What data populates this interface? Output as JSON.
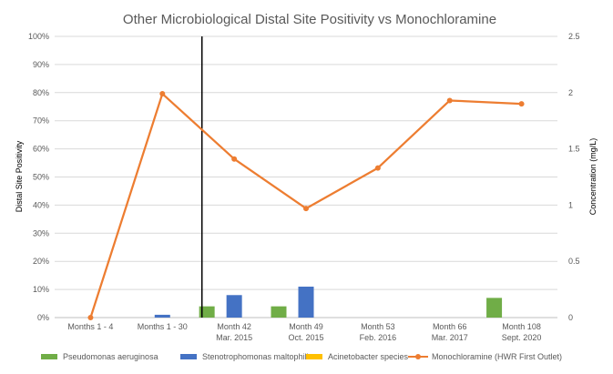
{
  "chart_data": {
    "type": "bar+line",
    "title": "Other Microbiological Distal Site Positivity vs Monochloramine",
    "ylabel": "Distal Site Positivity",
    "y2label": "Concentration (mg/L)",
    "ylim": [
      0,
      100
    ],
    "y2lim": [
      0,
      2.5
    ],
    "yticks": [
      "0%",
      "10%",
      "20%",
      "30%",
      "40%",
      "50%",
      "60%",
      "70%",
      "80%",
      "90%",
      "100%"
    ],
    "y2ticks": [
      "0",
      "0.5",
      "1",
      "1.5",
      "2",
      "2.5"
    ],
    "grid": true,
    "legend_position": "bottom",
    "categories": [
      {
        "line1": "Months 1 - 4",
        "line2": ""
      },
      {
        "line1": "Months 1 - 30",
        "line2": ""
      },
      {
        "line1": "Month 42",
        "line2": "Mar. 2015"
      },
      {
        "line1": "Month 49",
        "line2": "Oct. 2015"
      },
      {
        "line1": "Month 53",
        "line2": "Feb. 2016"
      },
      {
        "line1": "Month 66",
        "line2": "Mar. 2017"
      },
      {
        "line1": "Month 108",
        "line2": "Sept. 2020"
      }
    ],
    "divider_between_categories": [
      1,
      2
    ],
    "series": [
      {
        "name": "Pseudomonas aeruginosa",
        "type": "bar",
        "axis": "left",
        "color": "#70ad47",
        "values": [
          0,
          0,
          4,
          4,
          0,
          0,
          7
        ]
      },
      {
        "name": "Stenotrophomonas maltophilia",
        "type": "bar",
        "axis": "left",
        "color": "#4472c4",
        "values": [
          0,
          1,
          8,
          11,
          0,
          0,
          0
        ]
      },
      {
        "name": "Acinetobacter species",
        "type": "bar",
        "axis": "left",
        "color": "#ffc000",
        "values": [
          0,
          0,
          0,
          0,
          0,
          0,
          0
        ]
      },
      {
        "name": "Monochloramine (HWR First Outlet)",
        "type": "line",
        "axis": "right",
        "color": "#ed7d31",
        "values": [
          0,
          1.99,
          1.41,
          0.97,
          1.33,
          1.93,
          1.9
        ]
      }
    ]
  }
}
